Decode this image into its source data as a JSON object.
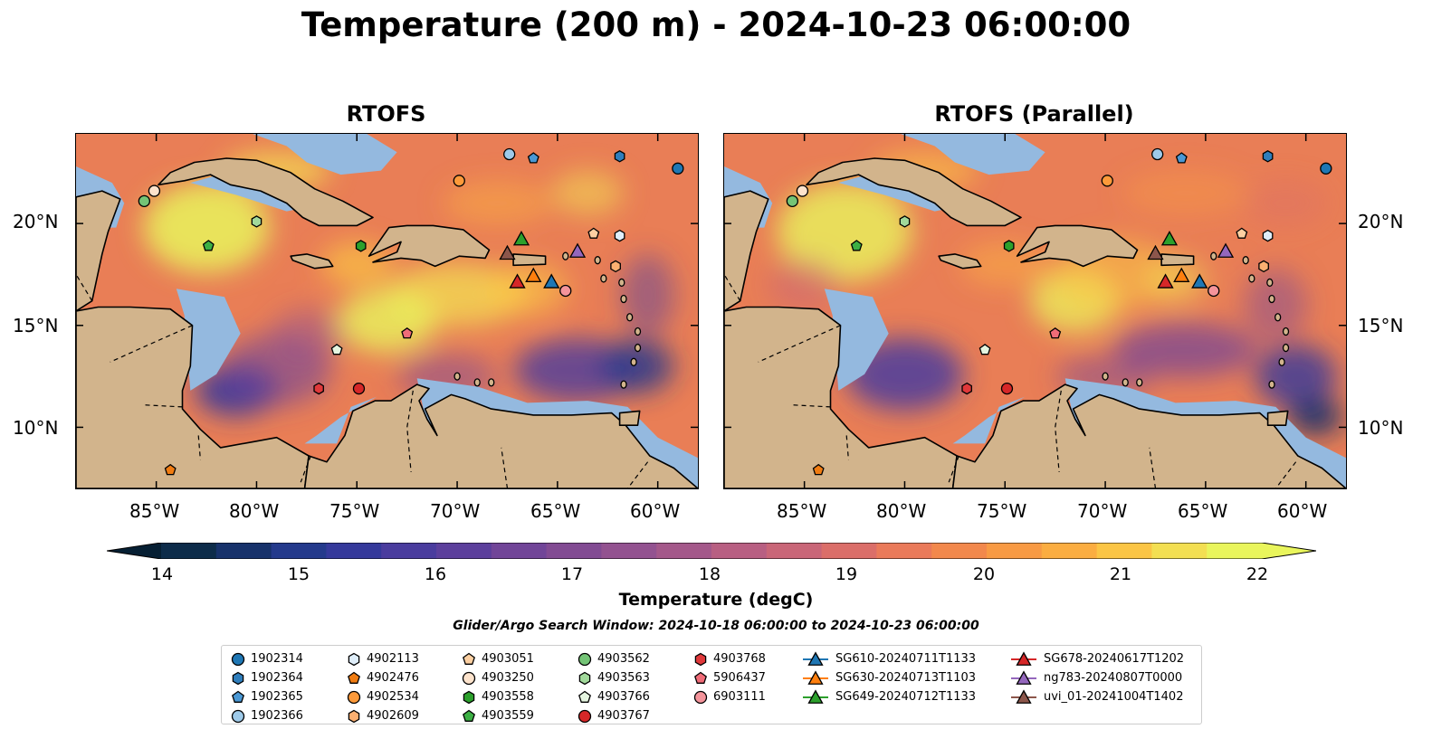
{
  "suptitle": "Temperature (200 m) - 2024-10-23 06:00:00",
  "panels": [
    {
      "title": "RTOFS"
    },
    {
      "title": "RTOFS (Parallel)"
    }
  ],
  "lon_labels": [
    "85°W",
    "80°W",
    "75°W",
    "70°W",
    "65°W",
    "60°W"
  ],
  "lat_labels": [
    "20°N",
    "15°N",
    "10°N"
  ],
  "colorbar": {
    "label": "Temperature (degC)",
    "min": 14,
    "max": 22,
    "step": 0.5,
    "ticks": [
      "14",
      "15",
      "16",
      "17",
      "18",
      "19",
      "20",
      "21",
      "22"
    ],
    "colors": [
      "#0d2c4a",
      "#17326b",
      "#243a8c",
      "#35399b",
      "#4a3c9e",
      "#5c3f9c",
      "#714598",
      "#824b93",
      "#935290",
      "#a4588a",
      "#b85f82",
      "#c96678",
      "#db6e69",
      "#ea7a5a",
      "#f2884c",
      "#f89a44",
      "#fbad41",
      "#fbc545",
      "#f3df52",
      "#e9f55c"
    ],
    "under_color": "#061f33",
    "over_color": "#e9f55c"
  },
  "search_window": "Glider/Argo Search Window: 2024-10-18 06:00:00 to 2024-10-23 06:00:00",
  "legend": [
    [
      {
        "label": "1902314",
        "marker": "circle",
        "color": "#1f77b4"
      },
      {
        "label": "1902364",
        "marker": "hexagon",
        "color": "#2f7ebc"
      },
      {
        "label": "1902365",
        "marker": "pentagon",
        "color": "#4a98d4"
      },
      {
        "label": "1902366",
        "marker": "circle",
        "color": "#9ecae9"
      }
    ],
    [
      {
        "label": "4902113",
        "marker": "hexagon",
        "color": "#dfeefa"
      },
      {
        "label": "4902476",
        "marker": "pentagon",
        "color": "#f07c12"
      },
      {
        "label": "4902534",
        "marker": "circle",
        "color": "#fd9a3a"
      },
      {
        "label": "4902609",
        "marker": "hexagon",
        "color": "#fcb071"
      }
    ],
    [
      {
        "label": "4903051",
        "marker": "pentagon",
        "color": "#fdd0a2"
      },
      {
        "label": "4903250",
        "marker": "circle",
        "color": "#fde3cc"
      },
      {
        "label": "4903558",
        "marker": "hexagon",
        "color": "#2ca02c"
      },
      {
        "label": "4903559",
        "marker": "pentagon",
        "color": "#3cb044"
      }
    ],
    [
      {
        "label": "4903562",
        "marker": "circle",
        "color": "#74c476"
      },
      {
        "label": "4903563",
        "marker": "hexagon",
        "color": "#a1d99b"
      },
      {
        "label": "4903766",
        "marker": "pentagon",
        "color": "#e5f5e0"
      },
      {
        "label": "4903767",
        "marker": "circle",
        "color": "#d62728"
      }
    ],
    [
      {
        "label": "4903768",
        "marker": "hexagon",
        "color": "#e0393b"
      },
      {
        "label": "5906437",
        "marker": "pentagon",
        "color": "#f06c78"
      },
      {
        "label": "6903111",
        "marker": "circle",
        "color": "#f4949b"
      }
    ],
    [
      {
        "label": "SG610-20240711T1133",
        "marker": "triangle-line",
        "color": "#1f77b4"
      },
      {
        "label": "SG630-20240713T1103",
        "marker": "triangle-line",
        "color": "#ff7f0e"
      },
      {
        "label": "SG649-20240712T1133",
        "marker": "triangle-line",
        "color": "#2ca02c"
      }
    ],
    [
      {
        "label": "SG678-20240617T1202",
        "marker": "triangle-line",
        "color": "#d62728"
      },
      {
        "label": "ng783-20240807T0000",
        "marker": "triangle-line",
        "color": "#9467bd"
      },
      {
        "label": "uvi_01-20241004T1402",
        "marker": "triangle-line",
        "color": "#8c564b"
      }
    ]
  ],
  "colors": {
    "land": "#d2b48c",
    "shelf": "#94b9df",
    "deep_ocean": "#061f33",
    "coast": "#000000"
  },
  "icons": {
    "legend_marker": "marker-icon",
    "glider": "triangle-icon"
  }
}
